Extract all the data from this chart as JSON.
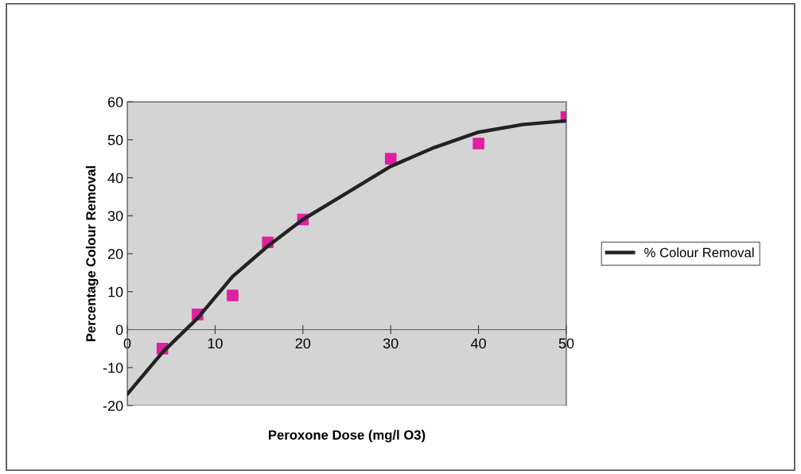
{
  "chart_data": {
    "type": "scatter",
    "xlabel": "Peroxone Dose (mg/l O3)",
    "ylabel": "Percentage Colour Removal",
    "x": [
      4,
      8,
      12,
      16,
      20,
      30,
      40,
      50
    ],
    "series": [
      {
        "color": "#e0209e",
        "marker": "square",
        "values": [
          -5,
          4,
          9,
          23,
          29,
          45,
          49,
          56
        ]
      },
      {
        "type": "line",
        "name": "% Colour Removal",
        "color": "#222222",
        "marker": "none",
        "x": [
          0,
          4,
          8,
          12,
          16,
          20,
          25,
          30,
          35,
          40,
          45,
          50
        ],
        "values": [
          -17,
          -6,
          3,
          14,
          22,
          29,
          36,
          43,
          48,
          52,
          54,
          55
        ]
      }
    ],
    "xlim": [
      0,
      50
    ],
    "xticks": [
      0,
      10,
      20,
      30,
      40,
      50
    ],
    "ylim": [
      -20,
      60
    ],
    "yticks": [
      -20,
      -10,
      0,
      10,
      20,
      30,
      40,
      50,
      60
    ],
    "grid": false,
    "legend": "right"
  }
}
